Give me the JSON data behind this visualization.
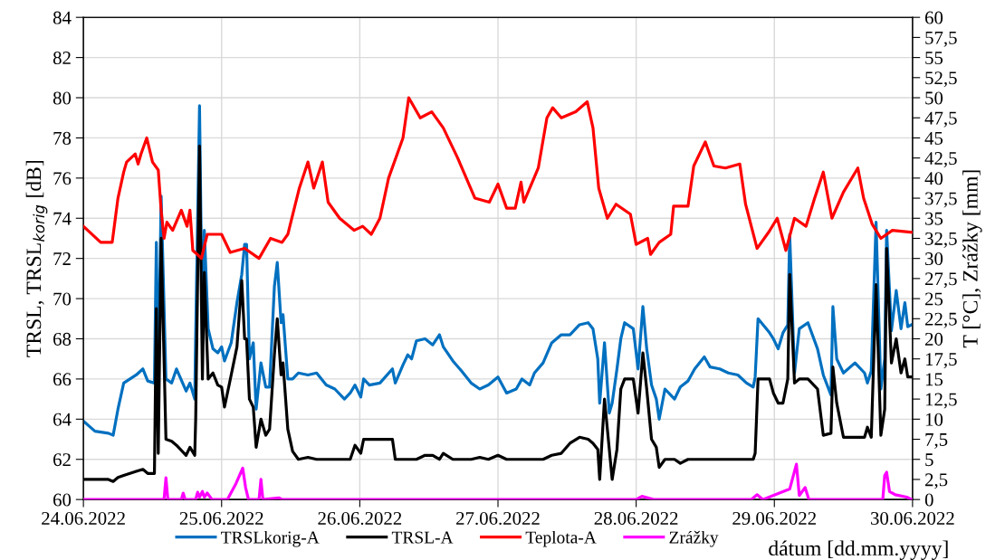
{
  "chart_data": {
    "type": "line",
    "xlabel": "dátum [dd.mm.yyyy]",
    "ylabel": "TRSL, TRSL$_{korig}$ [dB]",
    "y2label": "T [°C], Zrážky [mm]",
    "xlim": [
      "2022-06-24T00:00",
      "2022-06-30T00:00"
    ],
    "xticks": [
      {
        "value": "2022-06-24",
        "label": "24.06.2022"
      },
      {
        "value": "2022-06-25",
        "label": "25.06.2022"
      },
      {
        "value": "2022-06-26",
        "label": "26.06.2022"
      },
      {
        "value": "2022-06-27",
        "label": "27.06.2022"
      },
      {
        "value": "2022-06-28",
        "label": "28.06.2022"
      },
      {
        "value": "2022-06-29",
        "label": "29.06.2022"
      },
      {
        "value": "2022-06-30",
        "label": "30.06.2022"
      }
    ],
    "ylim": [
      60,
      84
    ],
    "yticks": [
      60,
      62,
      64,
      66,
      68,
      70,
      72,
      74,
      76,
      78,
      80,
      82,
      84
    ],
    "y2lim": [
      0,
      60
    ],
    "y2ticks": [
      0,
      {
        "value": 2.5,
        "label": "2,5"
      },
      5,
      {
        "value": 7.5,
        "label": "7,5"
      },
      10,
      {
        "value": 12.5,
        "label": "12,5"
      },
      15,
      {
        "value": 17.5,
        "label": "17,5"
      },
      20,
      {
        "value": 22.5,
        "label": "22,5"
      },
      25,
      {
        "value": 27.5,
        "label": "27,5"
      },
      30,
      {
        "value": 32.5,
        "label": "32,5"
      },
      35,
      {
        "value": 37.5,
        "label": "37,5"
      },
      40,
      {
        "value": 42.5,
        "label": "42,5"
      },
      45,
      {
        "value": 47.5,
        "label": "47,5"
      },
      50,
      {
        "value": 52.5,
        "label": "52,5"
      },
      55,
      {
        "value": 57.5,
        "label": "57,5"
      },
      60
    ],
    "grid": true,
    "legend": "bottom",
    "marker": "none",
    "line_style": "solid",
    "x": [
      "2022-06-24T00:00",
      "2022-06-24T02:00",
      "2022-06-24T04:20",
      "2022-06-24T05:10",
      "2022-06-24T06:00",
      "2022-06-24T07:00",
      "2022-06-24T09:10",
      "2022-06-24T10:20",
      "2022-06-24T11:10",
      "2022-06-24T12:20",
      "2022-06-24T12:40",
      "2022-06-24T13:00",
      "2022-06-24T13:30",
      "2022-06-24T14:20",
      "2022-06-24T15:20",
      "2022-06-24T16:10",
      "2022-06-24T17:50",
      "2022-06-24T18:30",
      "2022-06-24T19:20",
      "2022-06-24T19:30",
      "2022-06-24T20:10",
      "2022-06-24T20:40",
      "2022-06-24T21:00",
      "2022-06-24T21:40",
      "2022-06-24T22:30",
      "2022-06-24T23:20",
      "2022-06-25T00:00",
      "2022-06-25T00:30",
      "2022-06-25T01:40",
      "2022-06-25T02:40",
      "2022-06-25T03:30",
      "2022-06-25T04:00",
      "2022-06-25T04:20",
      "2022-06-25T04:50",
      "2022-06-25T05:30",
      "2022-06-25T06:00",
      "2022-06-25T06:50",
      "2022-06-25T07:40",
      "2022-06-25T08:20",
      "2022-06-25T09:10",
      "2022-06-25T09:40",
      "2022-06-25T10:20",
      "2022-06-25T10:40",
      "2022-06-25T11:30",
      "2022-06-25T12:20",
      "2022-06-25T13:20",
      "2022-06-25T15:00",
      "2022-06-25T16:30",
      "2022-06-25T18:10",
      "2022-06-25T19:40",
      "2022-06-25T21:20",
      "2022-06-25T22:20",
      "2022-06-25T23:10",
      "2022-06-26T00:10",
      "2022-06-26T00:40",
      "2022-06-26T01:40",
      "2022-06-26T03:30",
      "2022-06-26T05:40",
      "2022-06-26T06:10",
      "2022-06-26T07:30",
      "2022-06-26T08:20",
      "2022-06-26T09:00",
      "2022-06-26T09:50",
      "2022-06-26T11:20",
      "2022-06-26T12:40",
      "2022-06-26T13:50",
      "2022-06-26T14:30",
      "2022-06-26T16:10",
      "2022-06-26T17:40",
      "2022-06-26T19:20",
      "2022-06-26T20:50",
      "2022-06-26T22:20",
      "2022-06-27T00:00",
      "2022-06-27T01:30",
      "2022-06-27T03:10",
      "2022-06-27T04:10",
      "2022-06-27T05:30",
      "2022-06-27T06:20",
      "2022-06-27T07:50",
      "2022-06-27T09:20",
      "2022-06-27T11:00",
      "2022-06-27T12:30",
      "2022-06-27T14:10",
      "2022-06-27T15:40",
      "2022-06-27T16:30",
      "2022-06-27T17:20",
      "2022-06-27T17:40",
      "2022-06-27T18:30",
      "2022-06-27T19:20",
      "2022-06-27T19:50",
      "2022-06-27T20:40",
      "2022-06-27T21:20",
      "2022-06-27T22:00",
      "2022-06-27T23:30",
      "2022-06-28T00:20",
      "2022-06-28T01:10",
      "2022-06-28T01:50",
      "2022-06-28T02:40",
      "2022-06-28T03:30",
      "2022-06-28T04:00",
      "2022-06-28T05:00",
      "2022-06-28T06:40",
      "2022-06-28T07:40",
      "2022-06-28T09:00",
      "2022-06-28T10:10",
      "2022-06-28T11:50",
      "2022-06-28T12:50",
      "2022-06-28T14:30",
      "2022-06-28T16:00",
      "2022-06-28T17:40",
      "2022-06-28T19:10",
      "2022-06-28T20:20",
      "2022-06-28T20:40",
      "2022-06-28T21:10",
      "2022-06-28T22:20",
      "2022-06-28T23:10",
      "2022-06-28T23:50",
      "2022-06-29T00:40",
      "2022-06-29T01:30",
      "2022-06-29T02:20",
      "2022-06-29T02:40",
      "2022-06-29T03:30",
      "2022-06-29T04:20",
      "2022-06-29T05:50",
      "2022-06-29T07:30",
      "2022-06-29T08:30",
      "2022-06-29T09:50",
      "2022-06-29T10:10",
      "2022-06-29T10:50",
      "2022-06-29T12:00",
      "2022-06-29T14:00",
      "2022-06-29T15:40",
      "2022-06-29T16:10",
      "2022-06-29T16:50",
      "2022-06-29T17:40",
      "2022-06-29T18:30",
      "2022-06-29T19:10",
      "2022-06-29T19:30",
      "2022-06-29T20:20",
      "2022-06-29T21:10",
      "2022-06-29T22:00",
      "2022-06-29T22:40",
      "2022-06-29T23:10",
      "2022-06-29T23:50"
    ],
    "series": [
      {
        "name": "TRSLkorig-A",
        "color": "#0070c0",
        "values": [
          63.9,
          63.4,
          63.3,
          63.2,
          64.5,
          65.8,
          66.2,
          66.5,
          65.9,
          65.8,
          72.8,
          65.8,
          75.1,
          66.0,
          65.8,
          66.5,
          65.4,
          65.8,
          65.0,
          68.2,
          79.6,
          68.0,
          73.4,
          68.5,
          67.5,
          67.3,
          67.6,
          66.9,
          67.8,
          69.8,
          71.2,
          72.7,
          72.7,
          67.0,
          67.8,
          64.5,
          66.8,
          65.6,
          65.6,
          70.6,
          71.8,
          68.8,
          69.2,
          66.0,
          66.0,
          66.3,
          66.2,
          66.3,
          65.7,
          65.5,
          65.0,
          65.3,
          65.7,
          65.1,
          66.0,
          65.7,
          65.8,
          66.5,
          65.8,
          66.7,
          67.2,
          67.0,
          67.9,
          68.0,
          67.7,
          68.2,
          67.6,
          66.9,
          66.4,
          65.8,
          65.5,
          65.7,
          66.1,
          65.3,
          65.5,
          66.0,
          65.7,
          66.3,
          66.8,
          67.8,
          68.2,
          68.2,
          68.7,
          68.8,
          68.5,
          67.0,
          64.8,
          67.8,
          64.3,
          64.8,
          66.5,
          68.0,
          68.8,
          68.5,
          66.5,
          69.6,
          67.5,
          65.7,
          65.0,
          64.0,
          65.5,
          65.0,
          65.6,
          65.9,
          66.5,
          67.1,
          66.6,
          66.5,
          66.3,
          66.2,
          65.8,
          65.6,
          66.1,
          69.0,
          68.6,
          68.3,
          68.0,
          67.5,
          68.3,
          68.7,
          73.2,
          66.3,
          68.5,
          68.8,
          67.5,
          66.2,
          65.2,
          69.6,
          67.0,
          66.3,
          66.8,
          66.3,
          65.8,
          66.4,
          73.8,
          65.5,
          67.0,
          73.4,
          68.4,
          70.4,
          68.5,
          69.8,
          68.6,
          68.7
        ]
      },
      {
        "name": "TRSL-A",
        "color": "#000000",
        "values": [
          61.0,
          61.0,
          61.0,
          60.9,
          61.1,
          61.2,
          61.4,
          61.5,
          61.3,
          61.3,
          69.5,
          62.3,
          73.0,
          63.0,
          62.9,
          62.7,
          62.2,
          62.6,
          62.2,
          64.0,
          77.6,
          66.0,
          71.3,
          66.0,
          66.3,
          65.7,
          65.6,
          64.6,
          66.2,
          67.6,
          70.9,
          68.0,
          68.0,
          65.0,
          64.6,
          62.6,
          64.0,
          63.2,
          63.5,
          67.2,
          69.0,
          66.2,
          66.8,
          63.5,
          62.4,
          62.0,
          62.1,
          62.0,
          62.0,
          62.0,
          62.0,
          62.0,
          62.7,
          62.3,
          63.0,
          63.0,
          63.0,
          63.0,
          62.0,
          62.0,
          62.0,
          62.0,
          62.0,
          62.2,
          62.2,
          62.0,
          62.3,
          62.0,
          62.0,
          62.0,
          62.1,
          62.0,
          62.2,
          62.0,
          62.0,
          62.0,
          62.0,
          62.0,
          62.0,
          62.2,
          62.3,
          62.8,
          63.1,
          63.0,
          62.8,
          62.5,
          61.0,
          65.0,
          62.5,
          61.0,
          62.5,
          65.5,
          66.0,
          66.0,
          64.3,
          67.3,
          65.5,
          63.0,
          62.6,
          61.6,
          62.0,
          62.0,
          61.8,
          62.0,
          62.0,
          62.0,
          62.0,
          62.0,
          62.0,
          62.0,
          62.0,
          62.0,
          62.3,
          66.0,
          66.0,
          66.0,
          65.3,
          64.8,
          64.8,
          66.0,
          71.2,
          65.8,
          66.0,
          66.0,
          65.5,
          63.2,
          63.3,
          66.6,
          64.8,
          63.1,
          63.1,
          63.1,
          63.6,
          63.1,
          70.7,
          63.2,
          64.5,
          72.5,
          66.8,
          68.0,
          66.3,
          67.0,
          66.1,
          66.1
        ]
      },
      {
        "name": "Teplota-A",
        "color": "#ff0000",
        "axis": "y2",
        "x": [
          "2022-06-24T00:00",
          "2022-06-24T03:00",
          "2022-06-24T05:00",
          "2022-06-24T06:00",
          "2022-06-24T07:00",
          "2022-06-24T07:30",
          "2022-06-24T09:00",
          "2022-06-24T09:30",
          "2022-06-24T10:00",
          "2022-06-24T11:00",
          "2022-06-24T12:00",
          "2022-06-24T13:00",
          "2022-06-24T13:30",
          "2022-06-24T14:00",
          "2022-06-24T14:30",
          "2022-06-24T15:30",
          "2022-06-24T17:00",
          "2022-06-24T18:00",
          "2022-06-24T18:30",
          "2022-06-24T19:00",
          "2022-06-24T20:30",
          "2022-06-24T21:30",
          "2022-06-25T00:00",
          "2022-06-25T01:30",
          "2022-06-25T04:00",
          "2022-06-25T06:30",
          "2022-06-25T08:30",
          "2022-06-25T10:30",
          "2022-06-25T11:30",
          "2022-06-25T13:30",
          "2022-06-25T15:00",
          "2022-06-25T16:00",
          "2022-06-25T17:30",
          "2022-06-25T18:30",
          "2022-06-25T20:30",
          "2022-06-25T23:00",
          "2022-06-26T00:30",
          "2022-06-26T02:00",
          "2022-06-26T03:30",
          "2022-06-26T05:00",
          "2022-06-26T07:30",
          "2022-06-26T08:30",
          "2022-06-26T10:30",
          "2022-06-26T12:30",
          "2022-06-26T14:30",
          "2022-06-26T17:00",
          "2022-06-26T18:30",
          "2022-06-26T20:00",
          "2022-06-26T22:30",
          "2022-06-27T00:00",
          "2022-06-27T01:30",
          "2022-06-27T03:00",
          "2022-06-27T04:00",
          "2022-06-27T04:30",
          "2022-06-27T07:00",
          "2022-06-27T08:30",
          "2022-06-27T09:30",
          "2022-06-27T11:00",
          "2022-06-27T13:30",
          "2022-06-27T15:30",
          "2022-06-27T16:30",
          "2022-06-27T17:30",
          "2022-06-27T19:00",
          "2022-06-27T20:30",
          "2022-06-27T23:00",
          "2022-06-28T00:00",
          "2022-06-28T02:00",
          "2022-06-28T02:30",
          "2022-06-28T04:00",
          "2022-06-28T06:00",
          "2022-06-28T06:30",
          "2022-06-28T09:00",
          "2022-06-28T10:00",
          "2022-06-28T12:00",
          "2022-06-28T13:30",
          "2022-06-28T15:30",
          "2022-06-28T18:00",
          "2022-06-28T19:00",
          "2022-06-28T21:00",
          "2022-06-28T23:00",
          "2022-06-29T00:30",
          "2022-06-29T02:00",
          "2022-06-29T03:30",
          "2022-06-29T05:30",
          "2022-06-29T07:00",
          "2022-06-29T08:30",
          "2022-06-29T10:00",
          "2022-06-29T12:00",
          "2022-06-29T14:30",
          "2022-06-29T15:30",
          "2022-06-29T17:00",
          "2022-06-29T18:30",
          "2022-06-29T20:30",
          "2022-06-29T23:50"
        ],
        "values": [
          34,
          32,
          32,
          37.5,
          40.75,
          42,
          43,
          41.75,
          43,
          45,
          42,
          41,
          36,
          32.5,
          34.5,
          33.5,
          36,
          34,
          36,
          31,
          30,
          33,
          33,
          30.75,
          31.25,
          30,
          32.5,
          32,
          33,
          38.75,
          42,
          38.75,
          42,
          37,
          35,
          33.5,
          34,
          33,
          35,
          40,
          45,
          50,
          47.5,
          48.25,
          46.25,
          42.5,
          40,
          37.5,
          37,
          39.25,
          36.25,
          36.25,
          39.5,
          37,
          41.25,
          47.5,
          48.75,
          47.5,
          48.25,
          49.5,
          46.25,
          38.75,
          35,
          36.75,
          35.5,
          31.75,
          32.5,
          30.5,
          32,
          33,
          36.5,
          36.5,
          41.5,
          44.5,
          41.5,
          41.25,
          41.75,
          36.75,
          31.25,
          33.25,
          35,
          31,
          35,
          34,
          37.5,
          40.75,
          35,
          38.25,
          41.25,
          37.5,
          34.25,
          32.5,
          33.5,
          33.25
        ]
      },
      {
        "name": "Zrážky",
        "color": "#ff00ff",
        "axis": "y2",
        "x": [
          "2022-06-24T00:00",
          "2022-06-24T14:00",
          "2022-06-24T14:20",
          "2022-06-24T14:40",
          "2022-06-24T17:00",
          "2022-06-24T17:20",
          "2022-06-24T17:40",
          "2022-06-24T19:30",
          "2022-06-24T19:50",
          "2022-06-24T20:10",
          "2022-06-24T20:40",
          "2022-06-24T21:00",
          "2022-06-24T21:30",
          "2022-06-24T22:20",
          "2022-06-25T01:00",
          "2022-06-25T02:30",
          "2022-06-25T03:40",
          "2022-06-25T04:10",
          "2022-06-25T04:40",
          "2022-06-25T06:30",
          "2022-06-25T06:50",
          "2022-06-25T07:10",
          "2022-06-25T10:00",
          "2022-06-25T10:30",
          "2022-06-28T00:00",
          "2022-06-28T01:00",
          "2022-06-28T03:00",
          "2022-06-28T20:00",
          "2022-06-28T21:00",
          "2022-06-28T22:00",
          "2022-06-29T02:40",
          "2022-06-29T03:50",
          "2022-06-29T04:20",
          "2022-06-29T05:20",
          "2022-06-29T06:00",
          "2022-06-29T18:50",
          "2022-06-29T19:10",
          "2022-06-29T19:30",
          "2022-06-29T20:00",
          "2022-06-29T21:00",
          "2022-06-29T23:00",
          "2022-06-29T23:50"
        ],
        "values": [
          0,
          0,
          2.7,
          0,
          0,
          0.8,
          0,
          0,
          0.9,
          0.3,
          1.0,
          0.3,
          0.8,
          0,
          0,
          2.0,
          3.9,
          1.5,
          0,
          0,
          2.5,
          0,
          0.2,
          0,
          0,
          0.4,
          0,
          0,
          0.6,
          0,
          1.3,
          4.4,
          0.5,
          1.5,
          0,
          0,
          3.0,
          3.4,
          1.0,
          0.6,
          0.3,
          0
        ]
      }
    ]
  }
}
